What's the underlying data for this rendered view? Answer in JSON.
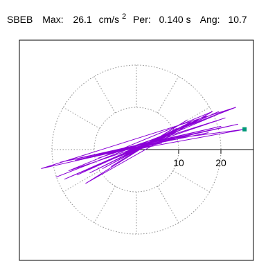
{
  "chart_data": {
    "type": "line",
    "title": {
      "station": "SBEB",
      "max_label": "Max:",
      "max_value": "26.1",
      "max_unit": "cm/s",
      "max_unit_exp": "2",
      "per_label": "Per:",
      "per_value": "0.140 s",
      "ang_label": "Ang:",
      "ang_value": "10.7"
    },
    "polar_grid": {
      "rings": [
        10,
        20
      ],
      "spoke_step_deg": 30,
      "style": "dotted"
    },
    "x_ticks": [
      {
        "value": 10,
        "label": "10"
      },
      {
        "value": 20,
        "label": "20"
      }
    ],
    "xlim": [
      -28,
      28
    ],
    "ylim": [
      -28,
      28
    ],
    "peak_vector": {
      "magnitude": 26.1,
      "angle_deg": 10.7,
      "x": 25.6,
      "y": 4.8
    },
    "series": [
      {
        "color": "#8a00d6",
        "x": [
          0.0,
          2.5,
          -1.8,
          4.2,
          -3.5,
          6.8,
          -5.2,
          9.5,
          -8.0,
          12.8,
          -11.0,
          16.5,
          -14.0,
          19.5,
          -17.0,
          22.0,
          -19.0,
          23.5,
          -22.5,
          24.0,
          -18.0,
          20.0,
          -14.5,
          17.0,
          -10.0,
          13.0,
          -7.0,
          9.0,
          -4.5,
          6.0,
          -2.5,
          3.5,
          -1.0,
          1.5,
          25.6,
          4.0,
          -6.0,
          12.0,
          -12.0,
          18.0,
          -16.0,
          21.0,
          -9.0,
          10.0,
          -3.0,
          7.0,
          -5.0,
          4.0,
          -2.0,
          2.0,
          0.0
        ],
        "y": [
          0.0,
          1.0,
          -1.2,
          2.0,
          -2.5,
          3.5,
          -3.0,
          5.0,
          -4.5,
          6.5,
          -5.5,
          8.0,
          -6.0,
          9.0,
          -7.0,
          9.5,
          -6.5,
          10.0,
          -4.5,
          6.0,
          -3.0,
          5.5,
          -2.5,
          4.0,
          -1.5,
          3.5,
          -1.0,
          2.5,
          -0.5,
          1.5,
          0.2,
          0.8,
          -0.3,
          0.4,
          4.8,
          2.0,
          -4.0,
          7.0,
          -8.0,
          9.0,
          -5.0,
          7.5,
          -2.0,
          4.5,
          -1.0,
          3.0,
          -2.0,
          1.5,
          -0.8,
          0.5,
          0.0
        ]
      }
    ],
    "marker_color": "#009977",
    "grid_color": "#8a8a8a",
    "axis_color": "#000000"
  }
}
